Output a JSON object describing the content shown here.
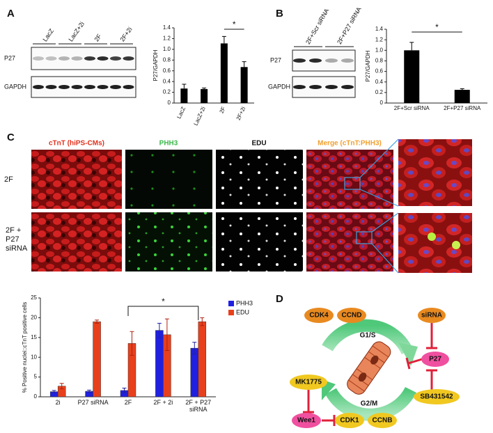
{
  "panel_labels": [
    "A",
    "B",
    "C",
    "D"
  ],
  "blots": [
    {
      "lanes": [
        "LacZ",
        "LacZ+2i",
        "2F",
        "2F+2i"
      ],
      "rows": [
        "P27",
        "GAPDH"
      ]
    },
    {
      "lanes": [
        "2F+Scr siRNA",
        "2F+P27 siRNA"
      ],
      "rows": [
        "P27",
        "GAPDH"
      ]
    }
  ],
  "microscopy": {
    "columns": [
      "cTnT (hiPS-CMs)",
      "PHH3",
      "EDU",
      "Merge (cTnT:PHH3)"
    ],
    "rows": [
      "2F",
      "2F + P27 siRNA"
    ]
  },
  "diagram": {
    "nodes": [
      "CDK4",
      "CCND",
      "siRNA",
      "P27",
      "SB431542",
      "MK1775",
      "Wee1",
      "CDK1",
      "CCNB"
    ],
    "phases": [
      "G1/S",
      "G2/M"
    ]
  },
  "chart_data": [
    {
      "type": "bar",
      "ylabel": "P27/GAPDH",
      "categories": [
        "LacZ",
        "LacZ+2i",
        "2F",
        "2F+2i"
      ],
      "values": [
        0.27,
        0.26,
        1.11,
        0.67
      ],
      "errors": [
        0.08,
        0.02,
        0.13,
        0.1
      ],
      "color": "#000000",
      "ylim": [
        0,
        1.4
      ],
      "yticks": [
        0,
        0.2,
        0.4,
        0.6,
        0.8,
        {
          "value": 1,
          "label": "1.0"
        },
        1.2,
        1.4
      ],
      "annotation": "*"
    },
    {
      "type": "bar",
      "ylabel": "P27/GAPDH",
      "categories": [
        "2F+Scr siRNA",
        "2F+P27 siRNA"
      ],
      "values": [
        1.0,
        0.25
      ],
      "errors": [
        0.15,
        0.02
      ],
      "color": "#000000",
      "ylim": [
        0,
        1.4
      ],
      "yticks": [
        0,
        0.2,
        0.4,
        0.6,
        0.8,
        {
          "value": 1,
          "label": "1.0"
        },
        1.2,
        1.4
      ],
      "annotation": "*"
    },
    {
      "type": "grouped-bar",
      "ylabel": "% Positive nuclei::cTnT positive cells",
      "categories": [
        "2i",
        "P27 siRNA",
        "2F",
        "2F + 2i",
        "2F + P27 siRNA"
      ],
      "series": [
        {
          "name": "PHH3",
          "color": "#2020e0",
          "values": [
            1.3,
            1.4,
            1.6,
            16.8,
            12.3
          ],
          "errors": [
            0.3,
            0.3,
            0.6,
            1.8,
            1.5
          ]
        },
        {
          "name": "EDU",
          "color": "#e8401c",
          "values": [
            2.7,
            19,
            13.5,
            15.7,
            19
          ],
          "errors": [
            0.7,
            0.4,
            3,
            4,
            1
          ]
        }
      ],
      "ylim": [
        0,
        25
      ],
      "yticks": [
        0,
        5,
        10,
        15,
        20,
        25
      ],
      "annotation": "*",
      "legend": "right"
    }
  ]
}
